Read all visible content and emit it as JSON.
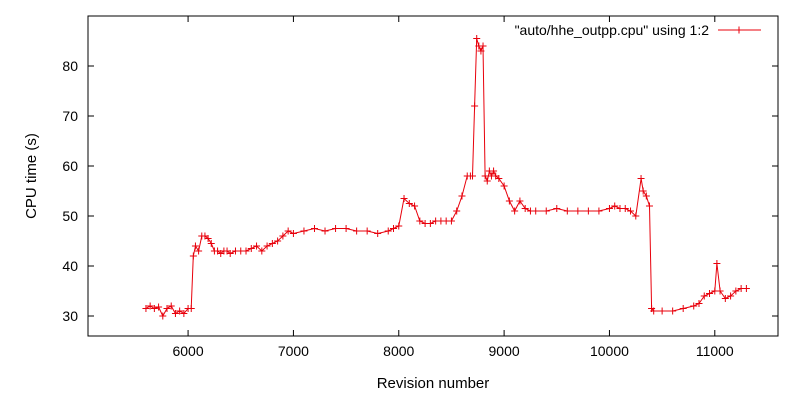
{
  "chart_data": {
    "type": "line",
    "xlabel": "Revision number",
    "ylabel": "CPU time (s)",
    "xlim": [
      5050,
      11600
    ],
    "ylim": [
      26,
      90
    ],
    "x_ticks": [
      6000,
      7000,
      8000,
      9000,
      10000,
      11000
    ],
    "y_ticks": [
      30,
      40,
      50,
      60,
      70,
      80
    ],
    "grid": false,
    "legend_position": "top-right",
    "series": [
      {
        "name": "\"auto/hhe_outpp.cpu\" using 1:2",
        "color": "#e8000b",
        "marker": "plus",
        "x": [
          5600,
          5640,
          5680,
          5720,
          5760,
          5800,
          5840,
          5880,
          5920,
          5960,
          6000,
          6030,
          6050,
          6070,
          6100,
          6130,
          6160,
          6190,
          6220,
          6250,
          6280,
          6310,
          6340,
          6370,
          6400,
          6450,
          6500,
          6550,
          6600,
          6650,
          6700,
          6750,
          6800,
          6850,
          6900,
          6950,
          7000,
          7100,
          7200,
          7300,
          7400,
          7500,
          7600,
          7700,
          7800,
          7900,
          7950,
          8000,
          8050,
          8100,
          8150,
          8200,
          8250,
          8300,
          8350,
          8400,
          8450,
          8500,
          8550,
          8600,
          8650,
          8680,
          8700,
          8720,
          8740,
          8760,
          8780,
          8800,
          8820,
          8840,
          8860,
          8880,
          8900,
          8920,
          8950,
          9000,
          9050,
          9100,
          9150,
          9200,
          9250,
          9300,
          9400,
          9500,
          9600,
          9700,
          9800,
          9900,
          10000,
          10050,
          10100,
          10150,
          10200,
          10250,
          10300,
          10320,
          10350,
          10380,
          10400,
          10420,
          10500,
          10600,
          10700,
          10800,
          10850,
          10900,
          10950,
          11000,
          11020,
          11050,
          11100,
          11150,
          11200,
          11250,
          11300
        ],
        "y": [
          31.5,
          32,
          31.5,
          31.8,
          30,
          31.5,
          32,
          30.5,
          31,
          30.5,
          31.5,
          31.5,
          42,
          44,
          43,
          46,
          46,
          45.5,
          44.5,
          43,
          43,
          42.5,
          43,
          43,
          42.5,
          43,
          43,
          43,
          43.5,
          44,
          43,
          44,
          44.5,
          45,
          46,
          47,
          46.5,
          47,
          47.5,
          47,
          47.5,
          47.5,
          47,
          47,
          46.5,
          47,
          47.5,
          48,
          53.5,
          52.5,
          52,
          49,
          48.5,
          48.5,
          49,
          49,
          49,
          49,
          51,
          54,
          58,
          58,
          58,
          72,
          85.5,
          84,
          83,
          84,
          58,
          57,
          59,
          58,
          59,
          58,
          57.5,
          56,
          53,
          51,
          53,
          51.5,
          51,
          51,
          51,
          51.5,
          51,
          51,
          51,
          51,
          51.5,
          52,
          51.5,
          51.5,
          51,
          50,
          57.5,
          55,
          54,
          52,
          31.5,
          31,
          31,
          31,
          31.5,
          32,
          32.5,
          34,
          34.5,
          35,
          40.5,
          35,
          33.5,
          34,
          35,
          35.5,
          35.5
        ]
      }
    ]
  }
}
